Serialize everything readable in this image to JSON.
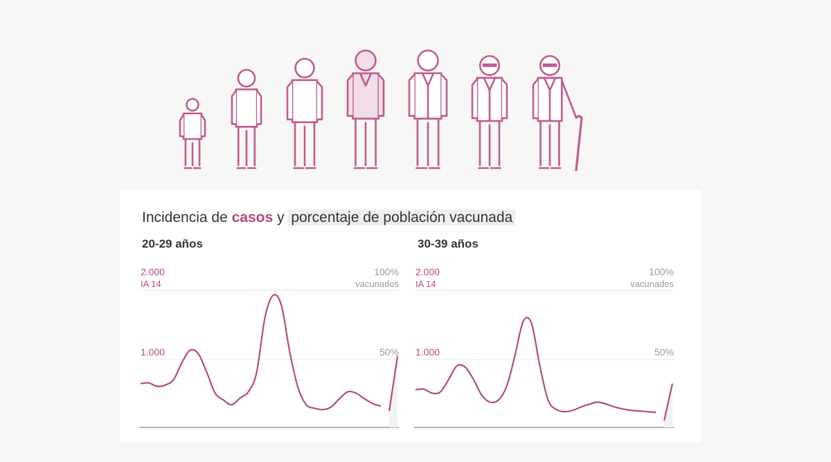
{
  "title": {
    "part1": "Incidencia de ",
    "highlight1": "casos",
    "part2": " y ",
    "highlight2": "porcentaje de población vacunada"
  },
  "colors": {
    "cases": "#b5487f",
    "figure_stroke": "#c05a8f",
    "figure_fill": "#f0dde8",
    "grid": "#e5e5e5",
    "baseline": "#999999",
    "muted_text": "#999999"
  },
  "figures": {
    "icons": [
      "child-icon",
      "teen-icon",
      "young-adult-icon",
      "adult-highlighted-icon",
      "middle-age-icon",
      "senior-icon",
      "elderly-cane-icon"
    ],
    "highlighted_index": 3
  },
  "chart_data": [
    {
      "type": "line",
      "panel_title": "20-29 años",
      "y_left_ticks": [
        {
          "value": 2000,
          "label": "2.000",
          "sublabel": "IA 14"
        },
        {
          "value": 1000,
          "label": "1.000"
        }
      ],
      "y_right_ticks": [
        {
          "value": 100,
          "label": "100%",
          "sublabel": "vacunados"
        },
        {
          "value": 50,
          "label": "50%"
        }
      ],
      "ylim_left": [
        0,
        2000
      ],
      "ylim_right": [
        0,
        100
      ],
      "series": [
        {
          "axis": "left",
          "values": [
            640,
            650,
            600,
            620,
            700,
            950,
            1130,
            1070,
            800,
            500,
            400,
            330,
            430,
            520,
            800,
            1600,
            1930,
            1780,
            1100,
            580,
            330,
            280,
            260,
            300,
            420,
            520,
            500,
            420,
            350,
            310,
            300,
            300
          ]
        },
        {
          "axis": "right",
          "values": [
            0,
            0,
            0,
            0,
            0,
            0,
            0,
            0,
            0,
            0,
            0,
            0,
            0,
            0,
            0,
            0,
            0,
            0,
            0,
            0,
            0,
            0,
            0,
            0,
            0,
            0,
            0,
            0,
            0,
            0,
            12,
            52
          ]
        }
      ]
    },
    {
      "type": "line",
      "panel_title": "30-39 años",
      "y_left_ticks": [
        {
          "value": 2000,
          "label": "2.000",
          "sublabel": "IA 14"
        },
        {
          "value": 1000,
          "label": "1.000"
        }
      ],
      "y_right_ticks": [
        {
          "value": 100,
          "label": "100%",
          "sublabel": "vacunados"
        },
        {
          "value": 50,
          "label": "50%"
        }
      ],
      "ylim_left": [
        0,
        2000
      ],
      "ylim_right": [
        0,
        100
      ],
      "series": [
        {
          "axis": "left",
          "values": [
            550,
            560,
            500,
            520,
            700,
            900,
            880,
            700,
            470,
            370,
            400,
            600,
            1050,
            1550,
            1520,
            900,
            400,
            260,
            230,
            250,
            300,
            340,
            370,
            340,
            300,
            270,
            250,
            240,
            230,
            220,
            160,
            300
          ]
        },
        {
          "axis": "right",
          "values": [
            0,
            0,
            0,
            0,
            0,
            0,
            0,
            0,
            0,
            0,
            0,
            0,
            0,
            0,
            0,
            0,
            0,
            0,
            0,
            0,
            0,
            0,
            0,
            0,
            0,
            0,
            0,
            0,
            0,
            0,
            5,
            32
          ]
        }
      ]
    }
  ]
}
